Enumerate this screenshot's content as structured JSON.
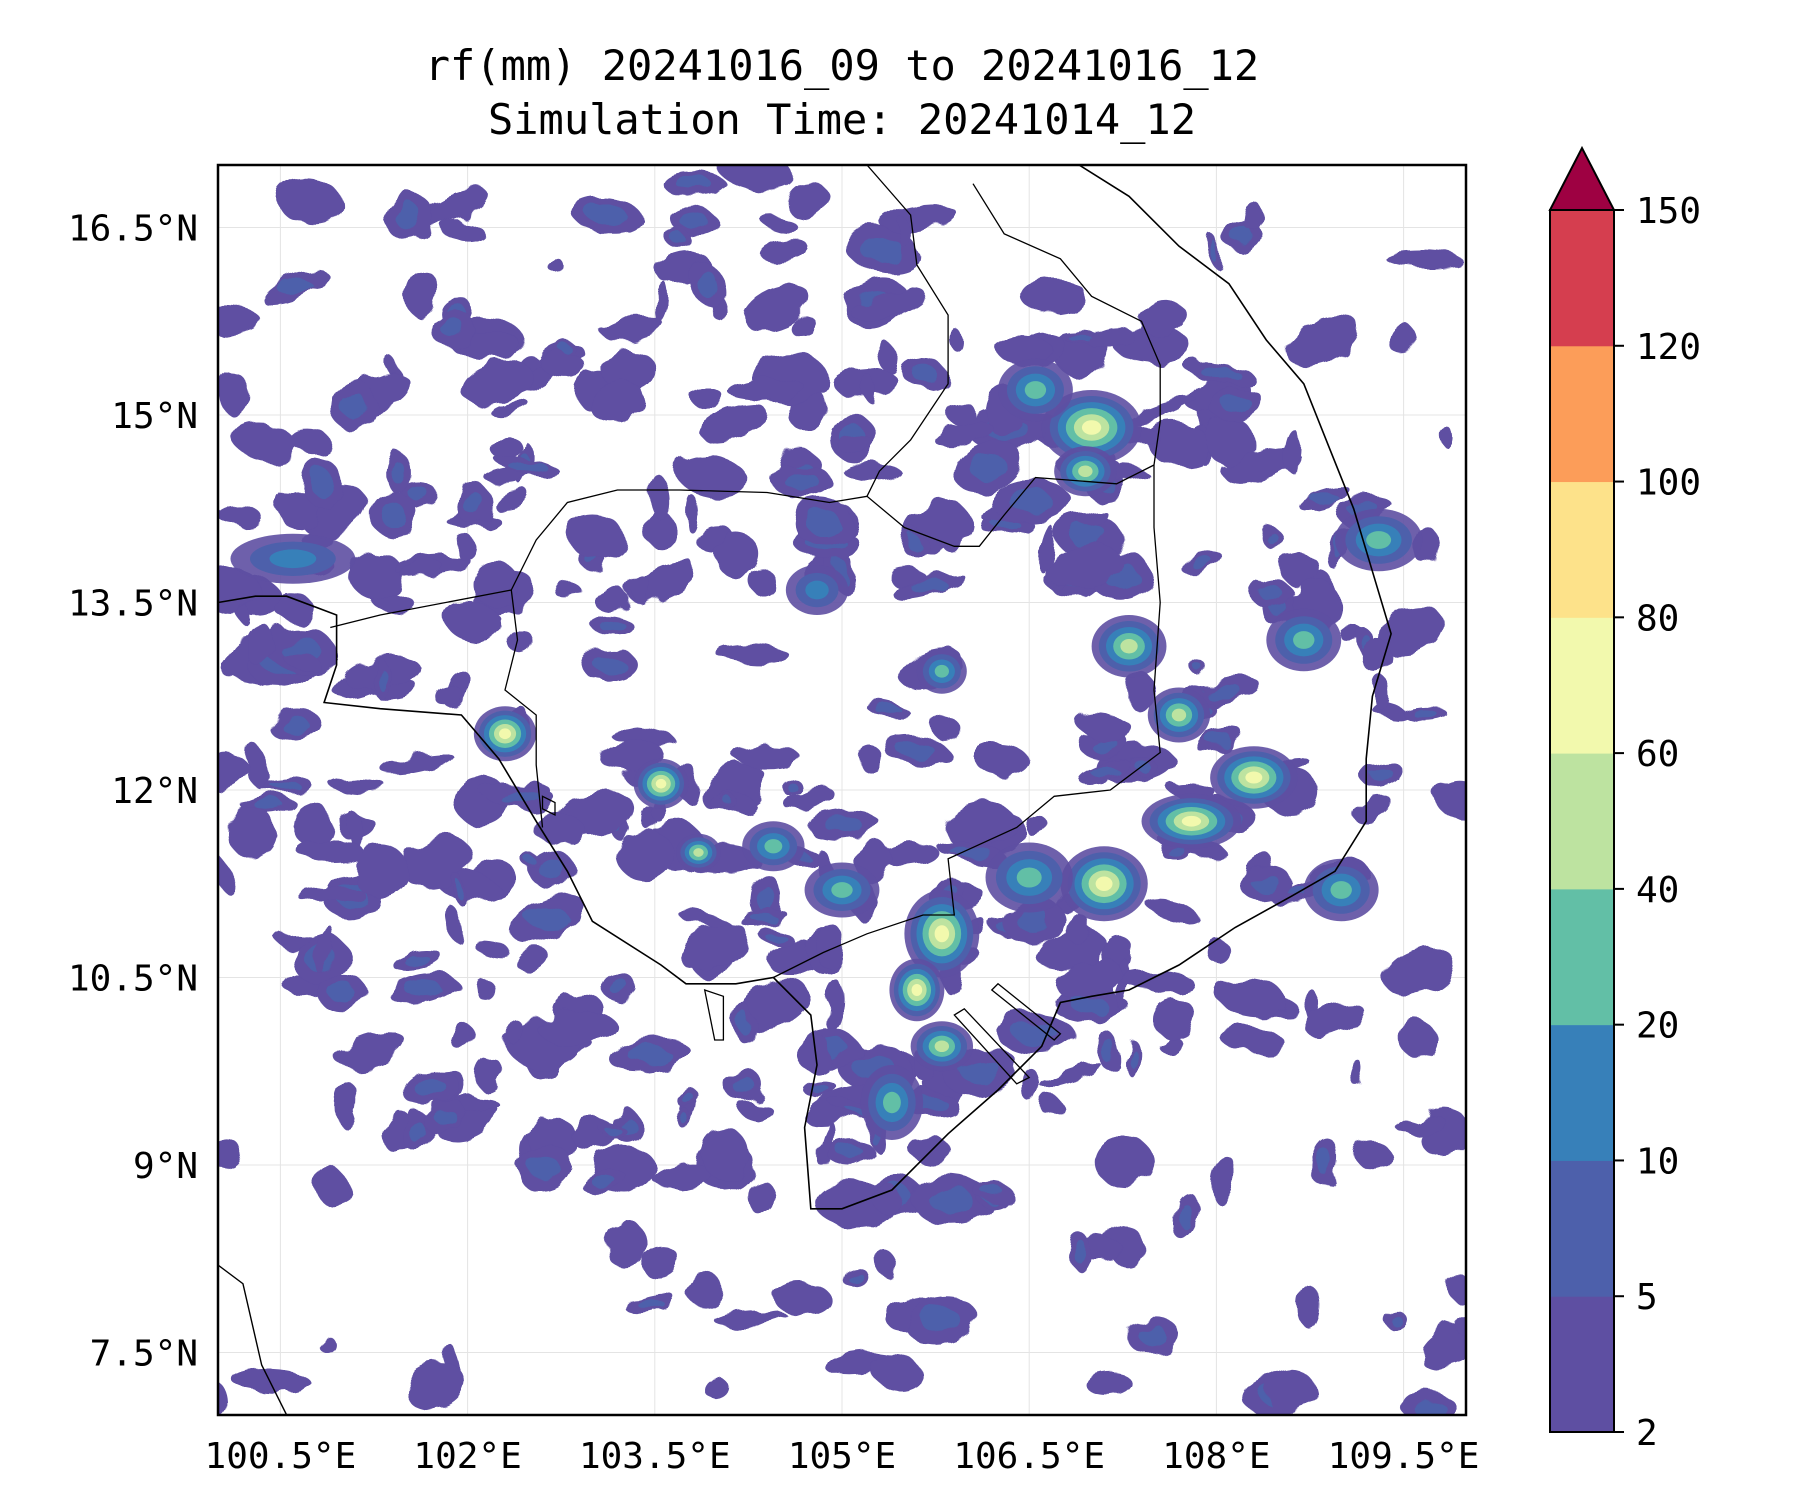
{
  "map": {
    "title_line1": "rf(mm) 20241016_09 to 20241016_12",
    "title_line2": "Simulation Time: 20241014_12",
    "extent": {
      "lon": [
        100.0,
        110.0
      ],
      "lat": [
        7.0,
        17.0
      ]
    },
    "lon_ticks": [
      {
        "value": 100.5,
        "label": "100.5°E"
      },
      {
        "value": 102.0,
        "label": "102°E"
      },
      {
        "value": 103.5,
        "label": "103.5°E"
      },
      {
        "value": 105.0,
        "label": "105°E"
      },
      {
        "value": 106.5,
        "label": "106.5°E"
      },
      {
        "value": 108.0,
        "label": "108°E"
      },
      {
        "value": 109.5,
        "label": "109.5°E"
      }
    ],
    "lat_ticks": [
      {
        "value": 16.5,
        "label": "16.5°N"
      },
      {
        "value": 15.0,
        "label": "15°N"
      },
      {
        "value": 13.5,
        "label": "13.5°N"
      },
      {
        "value": 12.0,
        "label": "12°N"
      },
      {
        "value": 10.5,
        "label": "10.5°N"
      },
      {
        "value": 9.0,
        "label": "9°N"
      },
      {
        "value": 7.5,
        "label": "7.5°N"
      }
    ],
    "gridlines": true
  },
  "colorbar": {
    "levels": [
      "2",
      "5",
      "10",
      "20",
      "40",
      "60",
      "80",
      "100",
      "120",
      "150"
    ],
    "colors": [
      "#5e4fa2",
      "#4d60ab",
      "#3780b9",
      "#62bfa6",
      "#bde3a0",
      "#f2f9ad",
      "#fde28a",
      "#fc9d59",
      "#d53e4f",
      "#9e0142"
    ],
    "extend": "max"
  },
  "chart_data": {
    "type": "heatmap",
    "variable": "rf(mm)",
    "coastline_lonlat": [
      [
        100.0,
        13.5
      ],
      [
        100.3,
        13.55
      ],
      [
        100.55,
        13.55
      ],
      [
        100.95,
        13.4
      ],
      [
        100.95,
        13.0
      ],
      [
        100.85,
        12.7
      ],
      [
        101.3,
        12.65
      ],
      [
        101.95,
        12.6
      ],
      [
        102.25,
        12.25
      ],
      [
        102.55,
        11.75
      ],
      [
        102.8,
        11.35
      ],
      [
        103.0,
        10.95
      ],
      [
        103.55,
        10.6
      ],
      [
        103.75,
        10.45
      ],
      [
        104.15,
        10.45
      ],
      [
        104.45,
        10.5
      ],
      [
        104.75,
        10.2
      ],
      [
        104.8,
        9.8
      ],
      [
        104.7,
        9.3
      ],
      [
        104.75,
        8.65
      ],
      [
        105.0,
        8.65
      ],
      [
        105.4,
        8.8
      ],
      [
        105.85,
        9.25
      ],
      [
        106.25,
        9.6
      ],
      [
        106.6,
        9.95
      ],
      [
        106.75,
        10.3
      ],
      [
        107.0,
        10.35
      ],
      [
        107.3,
        10.4
      ],
      [
        107.7,
        10.6
      ],
      [
        108.15,
        10.9
      ],
      [
        108.6,
        11.15
      ],
      [
        108.95,
        11.35
      ],
      [
        109.2,
        11.75
      ],
      [
        109.2,
        12.25
      ],
      [
        109.25,
        12.75
      ],
      [
        109.4,
        13.25
      ],
      [
        109.25,
        13.75
      ],
      [
        109.1,
        14.25
      ],
      [
        108.9,
        14.75
      ],
      [
        108.7,
        15.25
      ],
      [
        108.4,
        15.6
      ],
      [
        108.1,
        16.05
      ],
      [
        107.7,
        16.35
      ],
      [
        107.3,
        16.75
      ],
      [
        106.9,
        17.0
      ]
    ],
    "borders_lonlat": [
      [
        [
          102.35,
          13.6
        ],
        [
          102.55,
          14.0
        ],
        [
          102.8,
          14.3
        ],
        [
          103.2,
          14.4
        ],
        [
          103.7,
          14.4
        ],
        [
          104.4,
          14.38
        ],
        [
          104.9,
          14.3
        ],
        [
          105.2,
          14.35
        ],
        [
          105.5,
          14.1
        ],
        [
          105.9,
          13.95
        ],
        [
          106.1,
          13.95
        ],
        [
          106.3,
          14.2
        ],
        [
          106.55,
          14.5
        ],
        [
          107.2,
          14.45
        ],
        [
          107.5,
          14.6
        ]
      ],
      [
        [
          106.05,
          16.85
        ],
        [
          106.3,
          16.45
        ],
        [
          106.75,
          16.25
        ],
        [
          107.0,
          15.95
        ],
        [
          107.4,
          15.75
        ],
        [
          107.55,
          15.4
        ],
        [
          107.55,
          14.95
        ],
        [
          107.5,
          14.6
        ],
        [
          107.5,
          14.1
        ],
        [
          107.55,
          13.5
        ],
        [
          107.5,
          12.8
        ],
        [
          107.55,
          12.3
        ],
        [
          107.15,
          12.0
        ],
        [
          106.7,
          11.95
        ],
        [
          106.4,
          11.7
        ],
        [
          105.85,
          11.45
        ],
        [
          105.9,
          11.0
        ],
        [
          105.65,
          11.0
        ],
        [
          105.2,
          10.85
        ],
        [
          104.85,
          10.7
        ],
        [
          104.45,
          10.5
        ]
      ],
      [
        [
          105.2,
          17.0
        ],
        [
          105.55,
          16.6
        ],
        [
          105.6,
          16.2
        ],
        [
          105.85,
          15.8
        ],
        [
          105.85,
          15.25
        ],
        [
          105.55,
          14.8
        ],
        [
          105.3,
          14.55
        ],
        [
          105.2,
          14.35
        ]
      ],
      [
        [
          100.9,
          13.3
        ],
        [
          101.3,
          13.4
        ],
        [
          102.35,
          13.6
        ],
        [
          102.4,
          13.2
        ],
        [
          102.3,
          12.8
        ],
        [
          102.55,
          12.6
        ],
        [
          102.55,
          12.2
        ],
        [
          102.6,
          11.7
        ]
      ]
    ],
    "islands_lonlat": [
      [
        [
          103.9,
          10.4
        ],
        [
          104.05,
          10.35
        ],
        [
          104.05,
          10.0
        ],
        [
          103.98,
          10.0
        ],
        [
          103.9,
          10.4
        ]
      ],
      [
        [
          105.9,
          10.2
        ],
        [
          106.4,
          9.65
        ],
        [
          106.5,
          9.7
        ],
        [
          105.98,
          10.25
        ]
      ],
      [
        [
          106.2,
          10.4
        ],
        [
          106.7,
          10.0
        ],
        [
          106.75,
          10.05
        ],
        [
          106.25,
          10.45
        ]
      ],
      [
        [
          102.6,
          11.95
        ],
        [
          102.7,
          11.9
        ],
        [
          102.7,
          11.8
        ],
        [
          102.6,
          11.85
        ]
      ]
    ],
    "rainfall_cells_lonlat": [
      {
        "lon": 102.3,
        "lat": 12.45,
        "rx": 0.25,
        "ry": 0.22,
        "level": 5
      },
      {
        "lon": 103.55,
        "lat": 12.05,
        "rx": 0.22,
        "ry": 0.2,
        "level": 5
      },
      {
        "lon": 103.85,
        "lat": 11.5,
        "rx": 0.18,
        "ry": 0.15,
        "level": 4
      },
      {
        "lon": 104.45,
        "lat": 11.55,
        "rx": 0.25,
        "ry": 0.2,
        "level": 3
      },
      {
        "lon": 105.0,
        "lat": 11.2,
        "rx": 0.3,
        "ry": 0.22,
        "level": 3
      },
      {
        "lon": 105.8,
        "lat": 10.85,
        "rx": 0.3,
        "ry": 0.35,
        "level": 5
      },
      {
        "lon": 105.6,
        "lat": 10.4,
        "rx": 0.22,
        "ry": 0.25,
        "level": 5
      },
      {
        "lon": 105.8,
        "lat": 9.95,
        "rx": 0.25,
        "ry": 0.2,
        "level": 4
      },
      {
        "lon": 105.4,
        "lat": 9.5,
        "rx": 0.25,
        "ry": 0.3,
        "level": 3
      },
      {
        "lon": 107.0,
        "lat": 14.9,
        "rx": 0.4,
        "ry": 0.3,
        "level": 5
      },
      {
        "lon": 106.95,
        "lat": 14.55,
        "rx": 0.25,
        "ry": 0.2,
        "level": 4
      },
      {
        "lon": 106.55,
        "lat": 15.2,
        "rx": 0.3,
        "ry": 0.25,
        "level": 3
      },
      {
        "lon": 107.3,
        "lat": 13.15,
        "rx": 0.3,
        "ry": 0.25,
        "level": 4
      },
      {
        "lon": 107.7,
        "lat": 12.6,
        "rx": 0.25,
        "ry": 0.22,
        "level": 4
      },
      {
        "lon": 108.3,
        "lat": 12.1,
        "rx": 0.35,
        "ry": 0.25,
        "level": 5
      },
      {
        "lon": 107.8,
        "lat": 11.75,
        "rx": 0.4,
        "ry": 0.22,
        "level": 5
      },
      {
        "lon": 107.1,
        "lat": 11.25,
        "rx": 0.35,
        "ry": 0.3,
        "level": 5
      },
      {
        "lon": 106.5,
        "lat": 11.3,
        "rx": 0.35,
        "ry": 0.28,
        "level": 3
      },
      {
        "lon": 108.7,
        "lat": 13.2,
        "rx": 0.3,
        "ry": 0.25,
        "level": 3
      },
      {
        "lon": 109.3,
        "lat": 14.0,
        "rx": 0.35,
        "ry": 0.25,
        "level": 3
      },
      {
        "lon": 100.6,
        "lat": 13.85,
        "rx": 0.5,
        "ry": 0.2,
        "level": 2
      },
      {
        "lon": 104.8,
        "lat": 13.6,
        "rx": 0.25,
        "ry": 0.2,
        "level": 2
      },
      {
        "lon": 105.8,
        "lat": 12.95,
        "rx": 0.2,
        "ry": 0.18,
        "level": 3
      },
      {
        "lon": 109.0,
        "lat": 11.2,
        "rx": 0.3,
        "ry": 0.25,
        "level": 3
      }
    ]
  }
}
